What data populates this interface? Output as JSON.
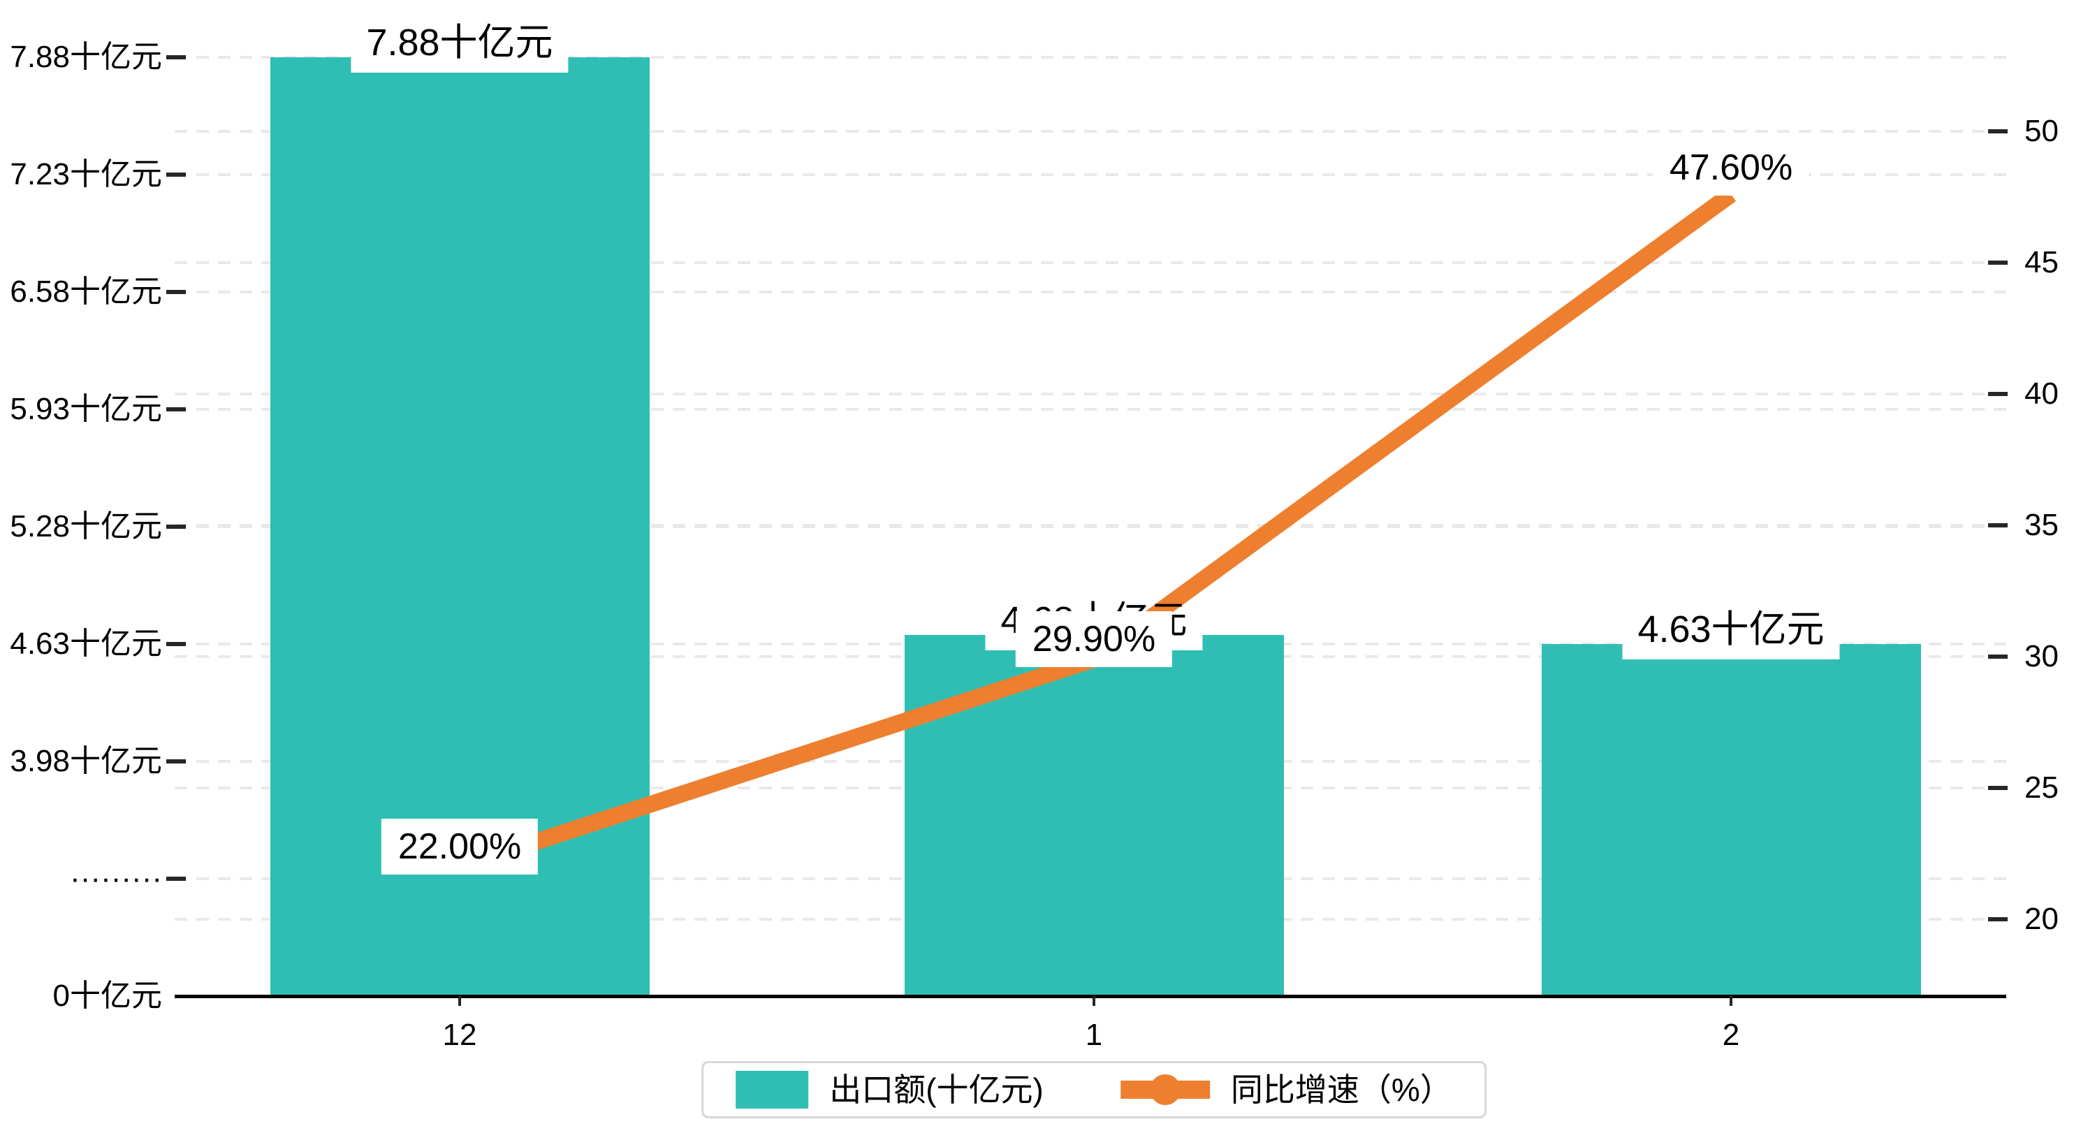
{
  "colors": {
    "bar": "#2fbeb3",
    "line": "#ee7f2f",
    "grid": "#e9e9e9",
    "axis": "#000000",
    "text": "#000000",
    "legend_border": "#d7d7d7"
  },
  "legend": {
    "items": [
      {
        "label": "出口额(十亿元)",
        "type": "bar"
      },
      {
        "label": "同比增速（%）",
        "type": "line"
      }
    ]
  },
  "chart_data": {
    "type": "combo",
    "categories": [
      "12",
      "1",
      "2"
    ],
    "series": [
      {
        "name": "出口额(十亿元)",
        "type": "bar",
        "values": [
          7.88,
          4.68,
          4.63
        ],
        "data_labels": [
          "7.88十亿元",
          "4.68十亿元",
          "4.63十亿元"
        ],
        "color": "#2fbeb3"
      },
      {
        "name": "同比增速（%）",
        "type": "line",
        "values": [
          22.0,
          29.9,
          47.6
        ],
        "data_labels": [
          "22.00%",
          "29.90%",
          "47.60%"
        ],
        "color": "#ee7f2f"
      }
    ],
    "left_axis": {
      "unit": "十亿元",
      "tick_labels": [
        "7.88十亿元",
        "7.23十亿元",
        "6.58十亿元",
        "5.93十亿元",
        "5.28十亿元",
        "4.63十亿元",
        "3.98十亿元",
        "·········",
        "0十亿元"
      ],
      "tick_values": [
        7.88,
        7.23,
        6.58,
        5.93,
        5.28,
        4.63,
        3.98,
        null,
        0
      ]
    },
    "right_axis": {
      "tick_labels": [
        "50",
        "45",
        "40",
        "35",
        "30",
        "25",
        "20"
      ],
      "tick_values": [
        50,
        45,
        40,
        35,
        30,
        25,
        20
      ]
    },
    "grid": "dashed horizontal",
    "legend_position": "bottom-center",
    "title": ""
  }
}
